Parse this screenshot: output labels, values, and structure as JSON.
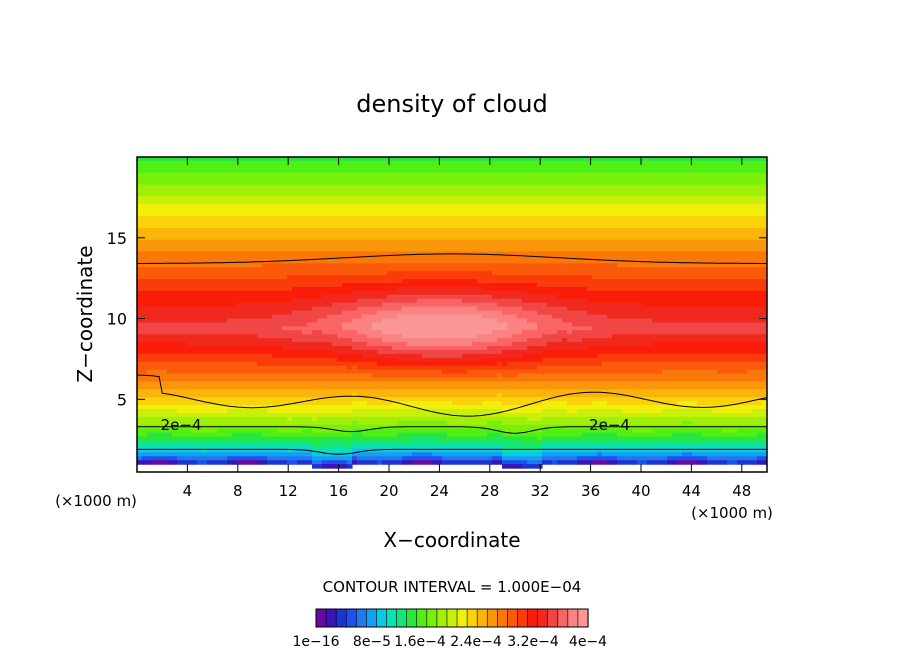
{
  "chart_data": {
    "type": "heatmap",
    "title": "density of cloud",
    "xlabel": "X−coordinate",
    "ylabel": "Z−coordinate",
    "x_unit_left": "(×1000 m)",
    "x_unit_right": "(×1000 m)",
    "xlim": [
      0,
      50
    ],
    "ylim": [
      0.5,
      20
    ],
    "x_ticks": [
      4,
      8,
      12,
      16,
      20,
      24,
      28,
      32,
      36,
      40,
      44,
      48
    ],
    "x_tick_labels": [
      "4",
      "8",
      "12",
      "16",
      "20",
      "24",
      "28",
      "32",
      "36",
      "40",
      "44",
      "48"
    ],
    "y_ticks": [
      5,
      10,
      15
    ],
    "y_tick_labels": [
      "5",
      "10",
      "15"
    ],
    "contour_interval_text": "CONTOUR INTERVAL = 1.000E−04",
    "contour_labels": [
      {
        "text": "2e−4",
        "x": 3.5,
        "z": 3.4
      },
      {
        "text": "2e−4",
        "x": 37.5,
        "z": 3.4
      }
    ],
    "colorbar_levels": 27,
    "colorbar_tick_labels": [
      "1e−16",
      "8e−5",
      "1.6e−4",
      "2.4e−4",
      "3.2e−4",
      "4e−4"
    ],
    "value_range": [
      1e-16,
      0.0004
    ],
    "colormap": [
      "#6a0aa0",
      "#3a14b4",
      "#2032d2",
      "#1e50f0",
      "#1e78f0",
      "#14a0f0",
      "#0ac8e6",
      "#0ae1b4",
      "#14e678",
      "#28e63c",
      "#50f014",
      "#78f00a",
      "#a0f00a",
      "#c8f00a",
      "#f0f00a",
      "#fad20a",
      "#fab40a",
      "#fa960a",
      "#fa780a",
      "#fa5a0a",
      "#fa3c0a",
      "#fa1e0a",
      "#f0281e",
      "#f04646",
      "#fa6464",
      "#fa8282",
      "#fa9696"
    ]
  }
}
